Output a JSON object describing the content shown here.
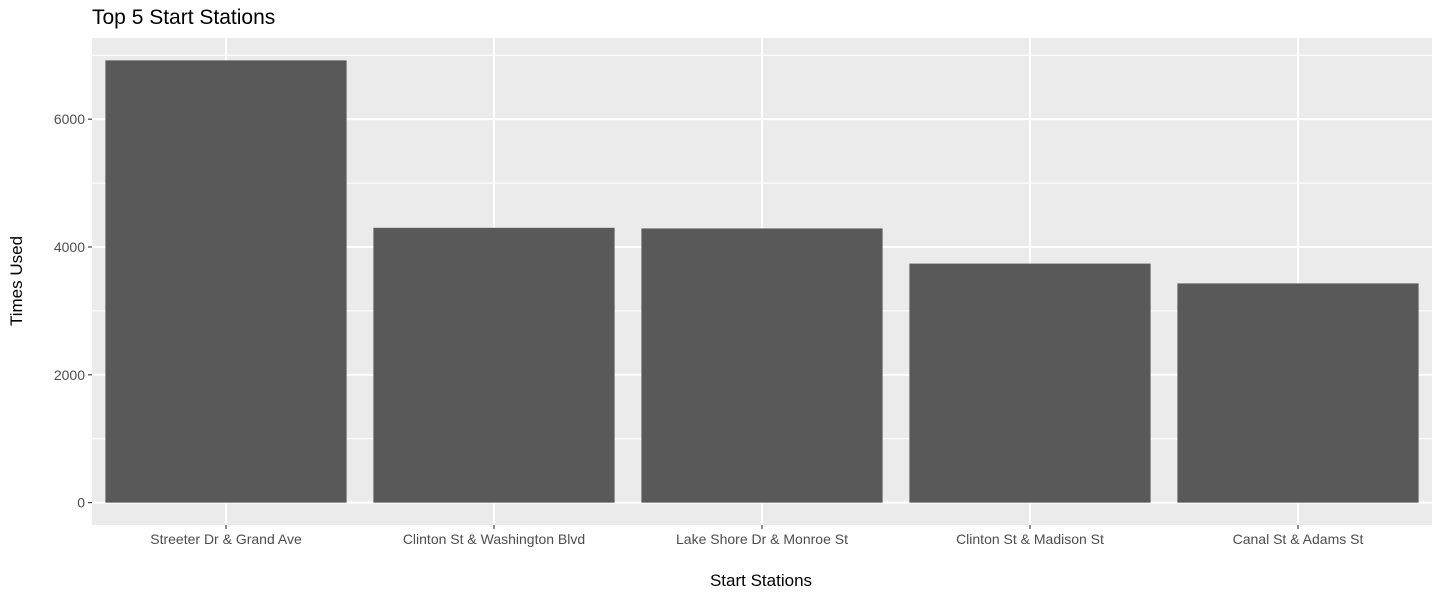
{
  "chart_data": {
    "type": "bar",
    "title": "Top 5 Start Stations",
    "xlabel": "Start Stations",
    "ylabel": "Times Used",
    "categories": [
      "Streeter Dr & Grand Ave",
      "Clinton St & Washington Blvd",
      "Lake Shore Dr & Monroe St",
      "Clinton St & Madison St",
      "Canal St & Adams St"
    ],
    "values": [
      6920,
      4300,
      4290,
      3740,
      3430
    ],
    "ylim": [
      -350,
      7270
    ],
    "yticks": [
      0,
      2000,
      4000,
      6000
    ],
    "ytick_labels": [
      "0",
      "2000",
      "4000",
      "6000"
    ],
    "grid": true,
    "legend": "none",
    "colors": {
      "bar": "#595959",
      "panel": "#ebebeb",
      "grid": "#ffffff",
      "tick": "#333333",
      "tick_label": "#4d4d4d"
    }
  }
}
